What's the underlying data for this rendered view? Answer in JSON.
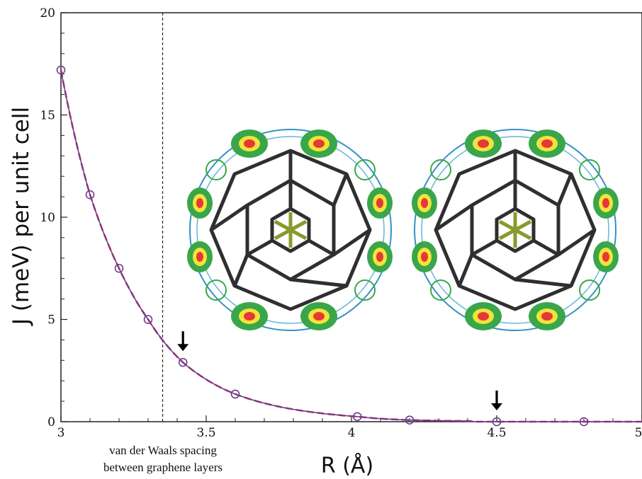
{
  "chart_data": {
    "type": "line",
    "title": "",
    "xlabel": "R (Å)",
    "ylabel": "J (meV) per unit cell",
    "xlim": [
      3,
      5
    ],
    "ylim": [
      0,
      20
    ],
    "x_ticks": [
      "3",
      "3.5",
      "4",
      "4.5",
      "5"
    ],
    "y_ticks": [
      "0",
      "5",
      "10",
      "15",
      "20"
    ],
    "grid": false,
    "legend": "none",
    "series": [
      {
        "color": "#6b3f8c",
        "x": [
          3.0,
          3.1,
          3.2,
          3.3,
          3.42,
          3.6,
          4.02,
          4.2,
          4.5,
          4.8
        ],
        "y": [
          17.2,
          11.1,
          7.5,
          5.0,
          2.9,
          1.35,
          0.25,
          0.08,
          0.0,
          0.0
        ]
      }
    ],
    "fit_curve_color": "#c2185b",
    "vertical_marker": {
      "x": 3.35,
      "label_line1": "van der Waals spacing",
      "label_line2": "between graphene layers"
    },
    "arrows_at_x": [
      3.42,
      4.5
    ]
  }
}
